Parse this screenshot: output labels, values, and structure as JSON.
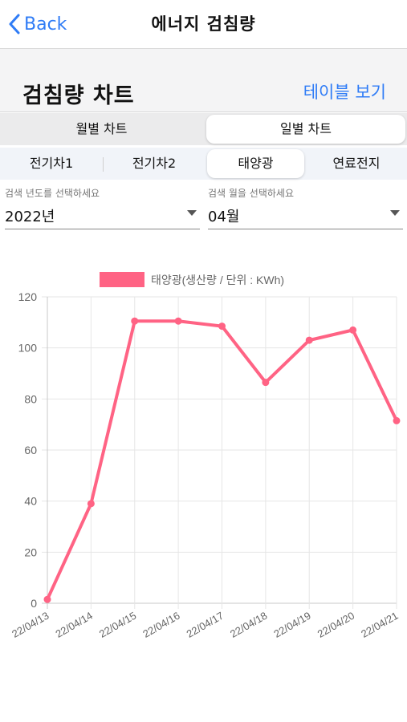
{
  "nav": {
    "back_label": "Back",
    "title": "에너지 검침량"
  },
  "header": {
    "title": "검침량 차트",
    "table_link": "테이블 보기"
  },
  "period_tabs": [
    {
      "label": "월별 차트",
      "active": false
    },
    {
      "label": "일별 차트",
      "active": true
    }
  ],
  "source_tabs": [
    {
      "label": "전기차1",
      "active": false
    },
    {
      "label": "전기차2",
      "active": false
    },
    {
      "label": "태양광",
      "active": true
    },
    {
      "label": "연료전지",
      "active": false
    }
  ],
  "year_select": {
    "label": "검색 년도를 선택하세요",
    "value": "2022년"
  },
  "month_select": {
    "label": "검색 월을 선택하세요",
    "value": "04월"
  },
  "chart_data": {
    "type": "line",
    "categories": [
      "22/04/13",
      "22/04/14",
      "22/04/15",
      "22/04/16",
      "22/04/17",
      "22/04/18",
      "22/04/19",
      "22/04/20",
      "22/04/21"
    ],
    "series": [
      {
        "name": "태양광(생산량 / 단위 : KWh)",
        "color": "#ff6384",
        "values": [
          1.5,
          39,
          110.5,
          110.5,
          108.5,
          86.5,
          103,
          107,
          71.5
        ]
      }
    ],
    "yticks": [
      0,
      20,
      40,
      60,
      80,
      100,
      120
    ],
    "ylim": [
      0,
      120
    ],
    "grid": true,
    "legend_position": "top"
  },
  "colors": {
    "accent": "#2f7cf6",
    "series": "#ff6384"
  }
}
